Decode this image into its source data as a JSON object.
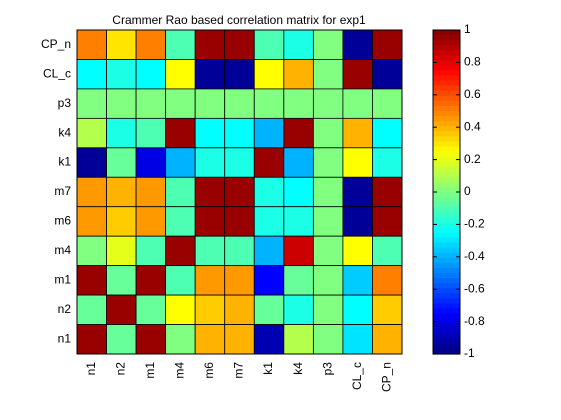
{
  "chart_data": {
    "type": "heatmap",
    "title": "Crammer Rao based correlation matrix for exp1",
    "x_labels": [
      "n1",
      "n2",
      "m1",
      "m4",
      "m6",
      "m7",
      "k1",
      "k4",
      "p3",
      "CL_c",
      "CP_n"
    ],
    "y_labels": [
      "CP_n",
      "CL_c",
      "p3",
      "k4",
      "k1",
      "m7",
      "m6",
      "m4",
      "m1",
      "n2",
      "n1"
    ],
    "values": [
      [
        0.5,
        0.3,
        0.5,
        -0.1,
        0.95,
        0.95,
        -0.1,
        -0.2,
        0.0,
        -0.95,
        0.95
      ],
      [
        -0.25,
        -0.2,
        -0.25,
        0.25,
        -0.95,
        -0.95,
        0.25,
        0.4,
        0.0,
        0.95,
        -0.95
      ],
      [
        0.0,
        0.0,
        0.0,
        0.0,
        0.0,
        0.0,
        0.0,
        0.0,
        0.0,
        0.0,
        0.0
      ],
      [
        0.1,
        -0.2,
        -0.1,
        0.95,
        -0.25,
        -0.25,
        -0.4,
        0.95,
        0.0,
        0.4,
        -0.25
      ],
      [
        -0.95,
        -0.05,
        -0.8,
        -0.4,
        -0.2,
        -0.2,
        0.95,
        -0.4,
        0.0,
        0.25,
        -0.2
      ],
      [
        0.45,
        0.4,
        0.45,
        -0.1,
        0.95,
        0.95,
        -0.2,
        -0.25,
        0.0,
        -0.95,
        0.95
      ],
      [
        0.45,
        0.35,
        0.45,
        -0.1,
        0.95,
        0.95,
        -0.2,
        -0.2,
        0.0,
        -0.95,
        0.95
      ],
      [
        0.0,
        0.2,
        -0.1,
        0.95,
        -0.1,
        -0.1,
        -0.4,
        0.85,
        0.0,
        0.25,
        -0.1
      ],
      [
        0.95,
        -0.05,
        0.95,
        -0.1,
        0.45,
        0.45,
        -0.75,
        -0.05,
        0.0,
        -0.35,
        0.5
      ],
      [
        -0.05,
        0.95,
        -0.05,
        0.25,
        0.35,
        0.4,
        -0.05,
        -0.2,
        0.0,
        -0.25,
        0.35
      ],
      [
        0.95,
        -0.05,
        0.95,
        0.0,
        0.4,
        0.4,
        -0.9,
        0.1,
        0.0,
        -0.3,
        0.4
      ]
    ],
    "colorbar": {
      "colormap": "jet",
      "range": [
        -1,
        1
      ],
      "ticks": [
        "-1",
        "-0.8",
        "-0.6",
        "-0.4",
        "-0.2",
        "0",
        "0.2",
        "0.4",
        "0.6",
        "0.8",
        "1"
      ]
    }
  }
}
